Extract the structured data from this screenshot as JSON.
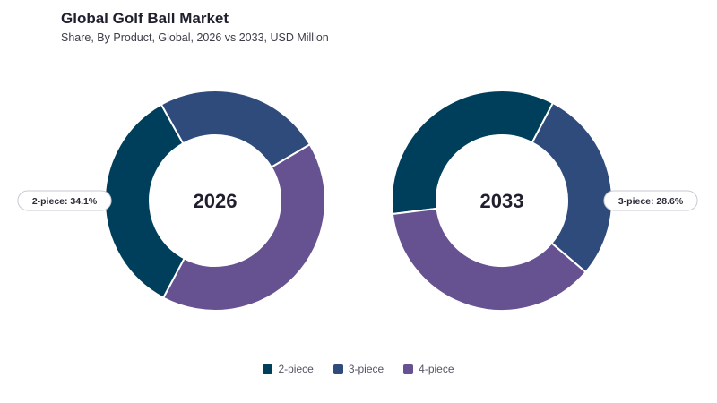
{
  "header": {
    "title": "Global Golf Ball Market",
    "subtitle": "Share, By Product, Global, 2026 vs 2033, USD Million"
  },
  "colors": {
    "2-piece": "#003f5c",
    "3-piece": "#2f4b7c",
    "4-piece": "#665191"
  },
  "chart_data": [
    {
      "type": "pie",
      "variant": "donut",
      "center_label": "2026",
      "categories": [
        "2-piece",
        "3-piece",
        "4-piece"
      ],
      "values": [
        34.1,
        24.6,
        41.3
      ],
      "unit": "%",
      "callout": "2-piece: 34.1%",
      "legend_placement": "bottom"
    },
    {
      "type": "pie",
      "variant": "donut",
      "center_label": "2033",
      "categories": [
        "2-piece",
        "3-piece",
        "4-piece"
      ],
      "values": [
        34.6,
        28.6,
        36.8
      ],
      "unit": "%",
      "callout": "3-piece: 28.6%",
      "legend_placement": "bottom"
    }
  ],
  "legend": [
    {
      "label": "2-piece",
      "color": "#003f5c"
    },
    {
      "label": "3-piece",
      "color": "#2f4b7c"
    },
    {
      "label": "4-piece",
      "color": "#665191"
    }
  ]
}
